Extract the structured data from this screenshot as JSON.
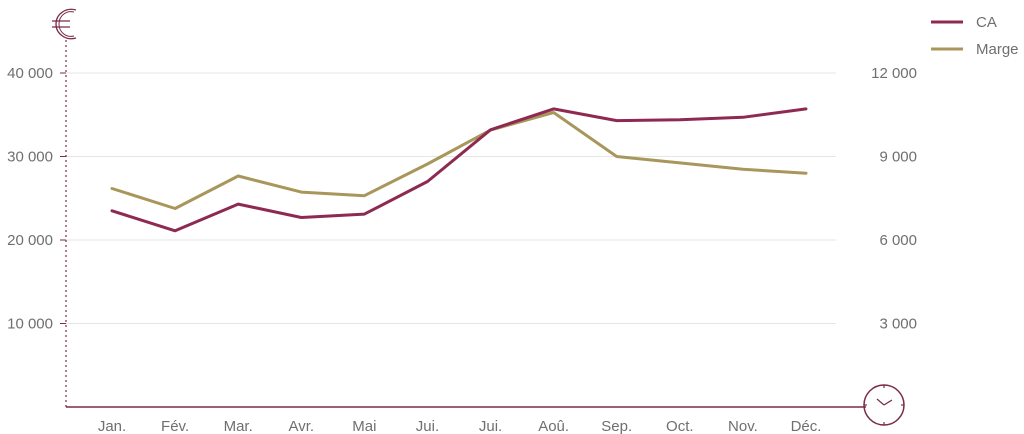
{
  "chart_data": {
    "type": "line",
    "categories": [
      "Jan.",
      "Fév.",
      "Mar.",
      "Avr.",
      "Mai",
      "Jui.",
      "Jui.",
      "Aoû.",
      "Sep.",
      "Oct.",
      "Nov.",
      "Déc."
    ],
    "series": [
      {
        "name": "CA",
        "axis": "left",
        "color": "#8e2a52",
        "values": [
          23500,
          21100,
          24300,
          22700,
          23100,
          27000,
          33200,
          35700,
          34300,
          34400,
          34700,
          35700
        ]
      },
      {
        "name": "Marge",
        "axis": "right",
        "color": "#a8965a",
        "values": [
          7850,
          7130,
          8300,
          7720,
          7590,
          8730,
          9950,
          10580,
          9000,
          8770,
          8540,
          8400
        ]
      }
    ],
    "y_left": {
      "ylim": [
        0,
        40000
      ],
      "ticks": [
        10000,
        20000,
        30000,
        40000
      ],
      "tick_labels": [
        "10 000",
        "20 000",
        "30 000",
        "40 000"
      ]
    },
    "y_right": {
      "ylim": [
        0,
        12000
      ],
      "ticks": [
        3000,
        6000,
        9000,
        12000
      ],
      "tick_labels": [
        "3 000",
        "6 000",
        "9 000",
        "12 000"
      ]
    },
    "grid": true,
    "legend_position": "top-right",
    "title": "",
    "xlabel": "",
    "ylabel": ""
  },
  "icons": {
    "left_axis": "euro-icon",
    "bottom_right": "clock-icon"
  },
  "colors": {
    "accent": "#7a2a4a",
    "grid": "#e6e6e6",
    "text": "#6f6f6f"
  }
}
